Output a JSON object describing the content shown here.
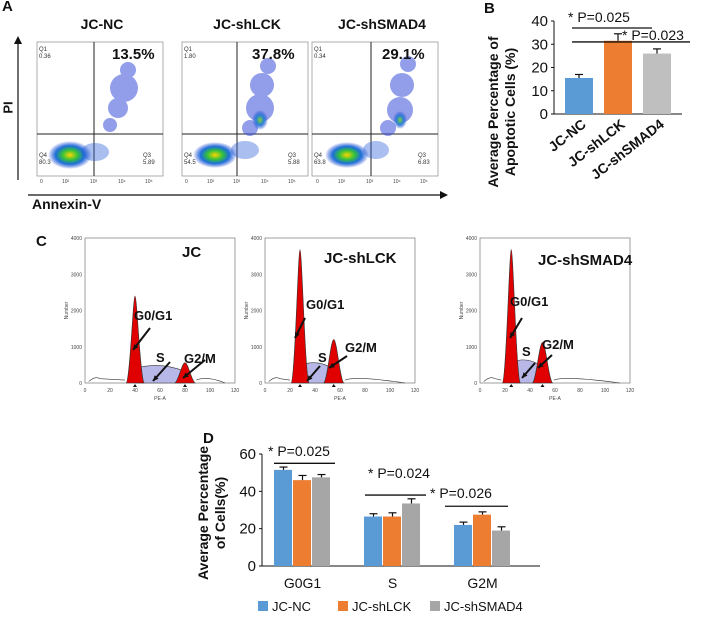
{
  "panels": {
    "A": "A",
    "B": "B",
    "C": "C",
    "D": "D"
  },
  "flow": {
    "ylabel": "PI",
    "xlabel": "Annexin-V",
    "plots": [
      {
        "title": "JC-NC",
        "pct": "13.5%",
        "q1": "Q1",
        "q1v": "0.36",
        "q4": "Q4",
        "q4v": "80.3",
        "q3": "Q3",
        "q3v": "5.89"
      },
      {
        "title": "JC-shLCK",
        "pct": "37.8%",
        "q1": "Q1",
        "q1v": "1.80",
        "q4": "Q4",
        "q4v": "54.5",
        "q3": "Q3",
        "q3v": "5.88"
      },
      {
        "title": "JC-shSMAD4",
        "pct": "29.1%",
        "q1": "Q1",
        "q1v": "0.34",
        "q4": "Q4",
        "q4v": "63.8",
        "q3": "Q3",
        "q3v": "6.83"
      }
    ]
  },
  "cycle": {
    "plots": [
      {
        "title": "JC",
        "g0": "G0/G1",
        "s": "S",
        "g2": "G2/M"
      },
      {
        "title": "JC-shLCK",
        "g0": "G0/G1",
        "s": "S",
        "g2": "G2/M"
      },
      {
        "title": "JC-shSMAD4",
        "g0": "G0/G1",
        "s": "S",
        "g2": "G2/M"
      }
    ],
    "yaxis_title": "Number",
    "xaxis_title": "PE-A",
    "yticks": [
      "0",
      "1000",
      "2000",
      "3000",
      "4000"
    ],
    "xticks": [
      "0",
      "20",
      "40",
      "60",
      "80",
      "100",
      "120"
    ]
  },
  "chart_data": [
    {
      "type": "bar",
      "title": "",
      "ylabel": "Average Percentage of Apoptotic Cells (%)",
      "ylabel_lines": [
        "Average Percentage of",
        "Apoptotic Cells  (%)"
      ],
      "categories": [
        "JC-NC",
        "JC-shLCK",
        "JC-shSMAD4"
      ],
      "values": [
        15.5,
        31.5,
        26
      ],
      "errors": [
        1.5,
        3,
        2
      ],
      "colors": [
        "#5b9bd5",
        "#ed7d31",
        "#bfbfbf"
      ],
      "ylim": [
        0,
        40
      ],
      "yticks": [
        "0",
        "10",
        "20",
        "30",
        "40"
      ],
      "annotations": [
        "* P=0.025",
        "* P=0.023"
      ]
    },
    {
      "type": "bar",
      "title": "",
      "ylabel": "Average Percentage of Cells(%)",
      "ylabel_lines": [
        "Average Percentage",
        "of Cells(%)"
      ],
      "categories": [
        "G0G1",
        "S",
        "G2M"
      ],
      "series": [
        {
          "name": "JC-NC",
          "color": "#5b9bd5",
          "values": [
            51.5,
            26.5,
            22
          ],
          "errors": [
            1.5,
            1.5,
            1.5
          ]
        },
        {
          "name": "JC-shLCK",
          "color": "#ed7d31",
          "values": [
            46,
            26.5,
            27.5
          ],
          "errors": [
            2.5,
            2,
            1.5
          ]
        },
        {
          "name": "JC-shSMAD4",
          "color": "#a6a6a6",
          "values": [
            47.5,
            33.5,
            19
          ],
          "errors": [
            1.5,
            2.5,
            2
          ]
        }
      ],
      "ylim": [
        0,
        60
      ],
      "yticks": [
        "0",
        "20",
        "40",
        "60"
      ],
      "annotations": [
        "* P=0.025",
        "* P=0.024",
        "* P=0.026"
      ]
    }
  ]
}
